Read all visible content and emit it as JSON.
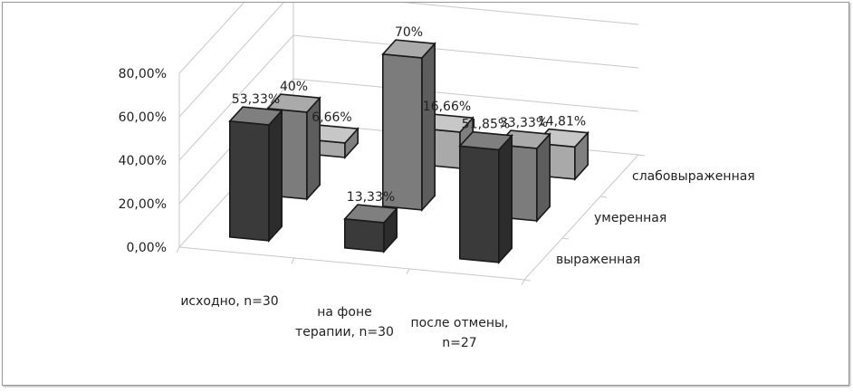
{
  "chart_data": {
    "type": "bar",
    "title": "",
    "categories": [
      "исходно, n=30",
      "на фоне терапии, n=30",
      "после отмены, n=27"
    ],
    "category_lines": [
      [
        "исходно, n=30"
      ],
      [
        "на фоне",
        "терапии, n=30"
      ],
      [
        "после отмены,",
        "n=27"
      ]
    ],
    "series": [
      {
        "name": "выраженная",
        "values": [
          53.33,
          13.33,
          51.85
        ],
        "labels": [
          "53,33%",
          "13,33%",
          "51,85%"
        ],
        "color": "#3a3a3a"
      },
      {
        "name": "умеренная",
        "values": [
          40,
          70,
          33.33
        ],
        "labels": [
          "40%",
          "70%",
          "33,33%"
        ],
        "color": "#7c7c7c"
      },
      {
        "name": "слабовыраженная",
        "values": [
          6.66,
          16.66,
          14.81
        ],
        "labels": [
          "6,66%",
          "16,66%",
          "14,81%"
        ],
        "color": "#a9a9a9"
      }
    ],
    "yticks": [
      "0,00%",
      "20,00%",
      "40,00%",
      "60,00%",
      "80,00%"
    ],
    "ylim": [
      0,
      80
    ],
    "grid": true
  }
}
